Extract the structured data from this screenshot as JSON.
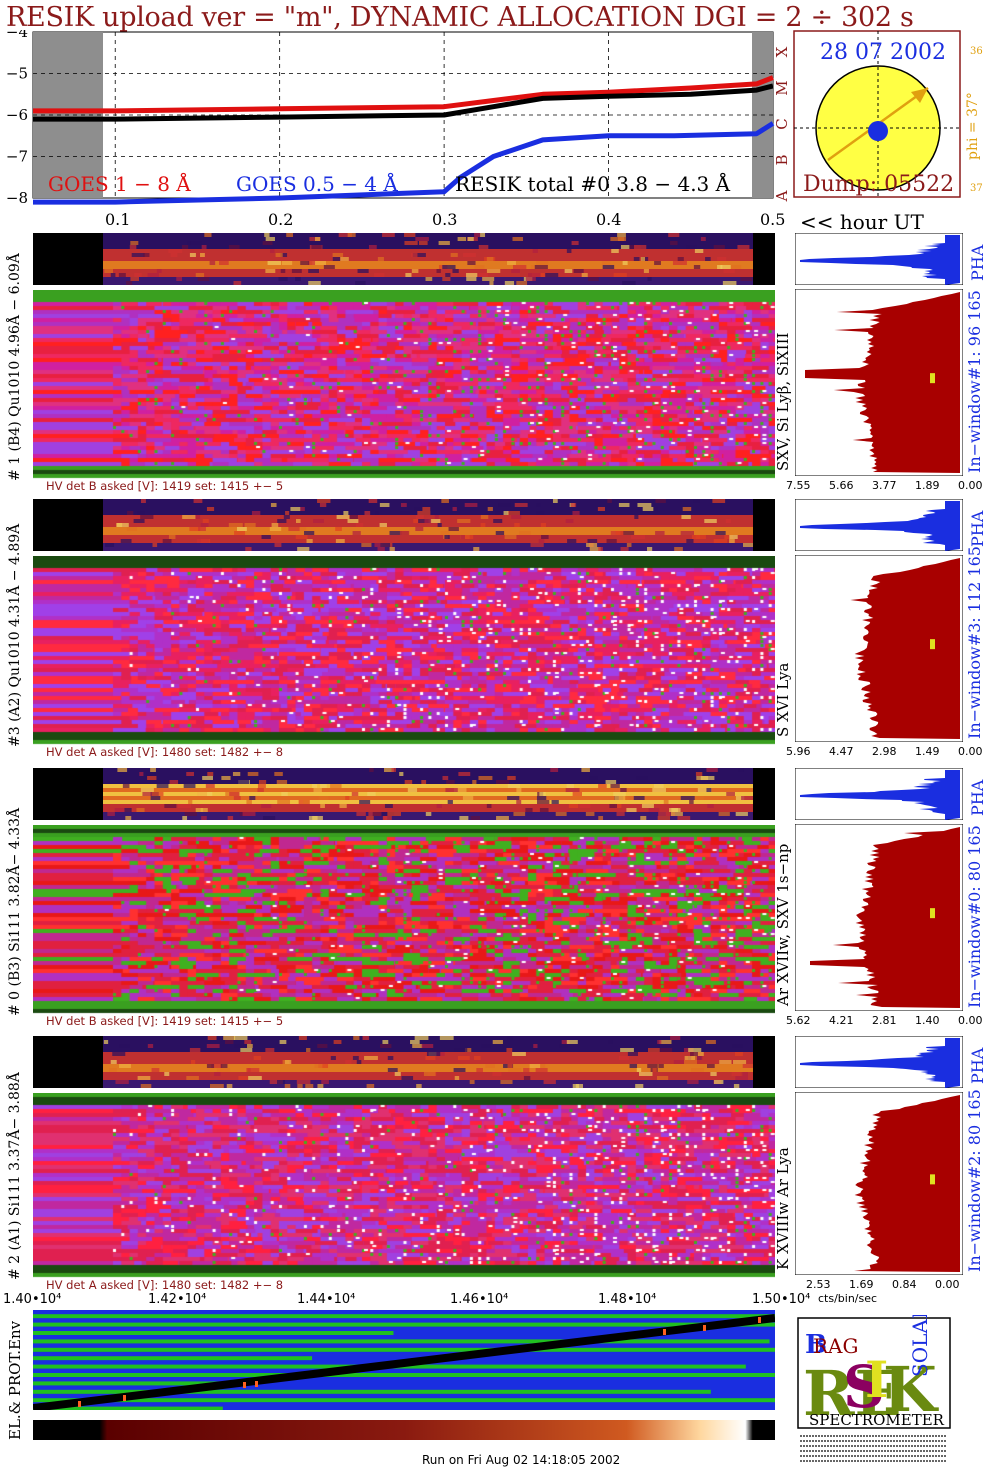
{
  "title": "RESIK upload ver = \"m\", DYNAMIC ALLOCATION  DGI =   2 ÷ 302 s",
  "colors": {
    "goes_long": "#e01010",
    "goes_short": "#1a2ee0",
    "resik": "#000000",
    "dark_red": "#8b1a1a",
    "sun": "#ffff44",
    "gold": "#e0a010",
    "blue_pha": "#1a2ee0"
  },
  "chart_data": [
    {
      "type": "line",
      "title": "",
      "ylabel": "",
      "xlabel": "<< hour UT",
      "ylim": [
        -8,
        -4
      ],
      "xlim": [
        0.05,
        0.5
      ],
      "yticks": [
        "−4",
        "−5",
        "−6",
        "−7",
        "−8"
      ],
      "xticks": [
        "0.1",
        "0.2",
        "0.3",
        "0.4",
        "0.5"
      ],
      "right_labels": [
        "A",
        "B",
        "C",
        "M",
        "X"
      ],
      "series": [
        {
          "name": "GOES 1 − 8 Å",
          "color": "#e01010",
          "x": [
            0.0,
            0.1,
            0.2,
            0.3,
            0.33,
            0.36,
            0.4,
            0.45,
            0.49,
            0.5
          ],
          "y": [
            -5.9,
            -5.9,
            -5.85,
            -5.8,
            -5.65,
            -5.5,
            -5.45,
            -5.35,
            -5.25,
            -5.1
          ]
        },
        {
          "name": "GOES 0.5 − 4 Å",
          "color": "#1a2ee0",
          "x": [
            0.0,
            0.1,
            0.2,
            0.3,
            0.31,
            0.33,
            0.36,
            0.4,
            0.44,
            0.49,
            0.5
          ],
          "y": [
            -8.5,
            -8.4,
            -8.0,
            -7.85,
            -7.5,
            -7.0,
            -6.6,
            -6.5,
            -6.5,
            -6.45,
            -6.2
          ]
        },
        {
          "name": "RESIK total #0  3.8 − 4.3 Å",
          "color": "#000000",
          "x": [
            0.0,
            0.1,
            0.2,
            0.3,
            0.33,
            0.36,
            0.4,
            0.45,
            0.49,
            0.5
          ],
          "y": [
            -6.1,
            -6.1,
            -6.05,
            -6.0,
            -5.8,
            -5.6,
            -5.55,
            -5.5,
            -5.4,
            -5.3
          ]
        }
      ]
    },
    {
      "type": "line",
      "title": "",
      "xlabel": "",
      "xlim": [
        14000,
        15000
      ],
      "xticks": [
        "1.40•10⁴",
        "1.42•10⁴",
        "1.44•10⁴",
        "1.46•10⁴",
        "1.48•10⁴",
        "1.50•10⁴"
      ],
      "series": [
        {
          "name": "",
          "x": [
            14000,
            15000
          ],
          "y": [
            0.2,
            0.95
          ]
        }
      ]
    }
  ],
  "sun_panel": {
    "date": "28 07 2002",
    "dump": "Dump: 05522",
    "phi": "phi = 37°",
    "top_num": "36",
    "bottom_num": "37"
  },
  "hour_label": "<< hour UT",
  "channels": [
    {
      "left_label": "# 1 (B4) Qu1010 4.96Å − 6.09Å",
      "line_label": "SXV, Si Lyβ, SiXIII",
      "window_label": "In−window#1:   96 165",
      "hv": "HV det B asked [V]:  1419 set:  1415 +−    5",
      "ticks": [
        "7.55",
        "5.66",
        "3.77",
        "1.89",
        "0.00"
      ],
      "pha": "PHA"
    },
    {
      "left_label": "#3 (A2) Qu1010  4.31Å − 4.89Å",
      "line_label": "S XVI Lya",
      "window_label": "In−window#3:   112 165",
      "hv": "HV det A asked [V]:  1480 set:  1482 +−    8",
      "ticks": [
        "5.96",
        "4.47",
        "2.98",
        "1.49",
        "0.00"
      ],
      "pha": "PHA"
    },
    {
      "left_label": "# 0 (B3) Si111  3.82Å− 4.33Å",
      "line_label": "Ar XVIIw,  SXV 1s−np",
      "window_label": "In−window#0:   80 165",
      "hv": "HV det B asked [V]:  1419 set:  1415 +−    5",
      "ticks": [
        "5.62",
        "4.21",
        "2.81",
        "1.40",
        "0.00"
      ],
      "pha": "PHA"
    },
    {
      "left_label": "# 2 (A1) Si111  3.37Å− 3.88Å",
      "line_label": "K XVIIIw  Ar Lya",
      "window_label": "In−window#2:   80 165",
      "hv": "HV det A asked [V]:  1480 set:  1482 +−    8",
      "ticks": [
        "2.53",
        "1.69",
        "0.84",
        "0.00"
      ],
      "pha": "PHA"
    }
  ],
  "cts_label": "cts/bin/sec",
  "env_label": "EL.& PROT.Env",
  "logo": {
    "letters": "BRAGG RESIK SOLAR",
    "word": "SPECTROMETER"
  },
  "footer": "Run on Fri Aug 02 14:18:05 2002"
}
